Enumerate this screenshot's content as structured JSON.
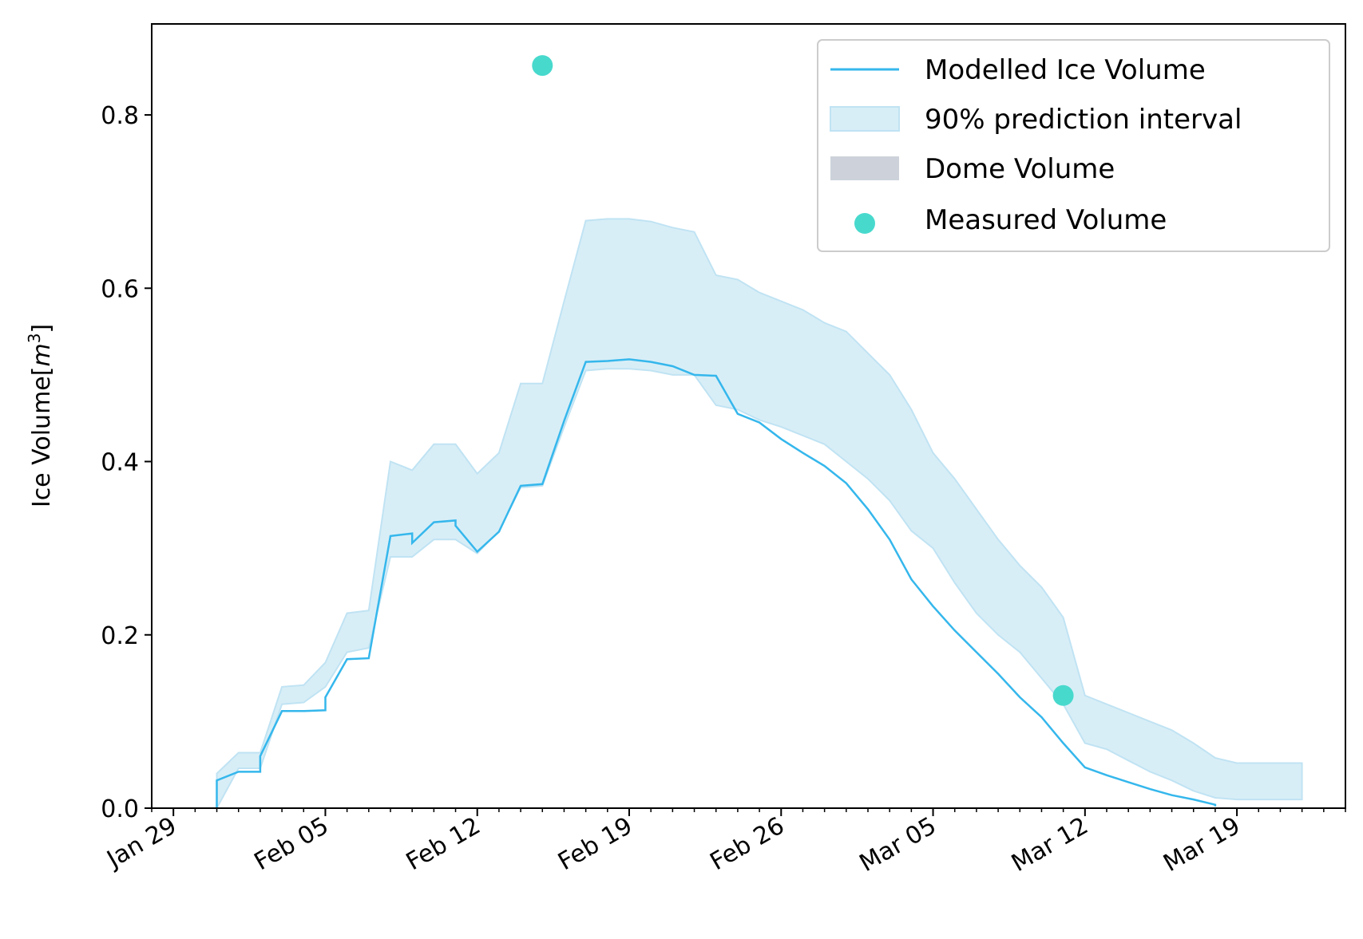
{
  "chart_data": {
    "type": "line",
    "title": "",
    "xlabel": "",
    "ylabel": "Ice Volume[m³]",
    "ylabel_parts": {
      "pre": "Ice Volume[",
      "var": "m",
      "sup": "3",
      "post": "]"
    },
    "x_axis_type": "date",
    "xlim": [
      "2019-01-28",
      "2019-03-24"
    ],
    "ylim": [
      0.0,
      0.905
    ],
    "x_ticks": [
      "Jan 29",
      "Feb 05",
      "Feb 12",
      "Feb 19",
      "Feb 26",
      "Mar 05",
      "Mar 12",
      "Mar 19"
    ],
    "x_tick_dates": [
      "2019-01-29",
      "2019-02-05",
      "2019-02-12",
      "2019-02-19",
      "2019-02-26",
      "2019-03-05",
      "2019-03-12",
      "2019-03-19"
    ],
    "y_ticks": [
      "0.0",
      "0.2",
      "0.4",
      "0.6",
      "0.8"
    ],
    "y_tick_values": [
      0.0,
      0.2,
      0.4,
      0.6,
      0.8
    ],
    "grid": false,
    "legend_position": "top-right",
    "legend": [
      {
        "label": "Modelled Ice Volume",
        "kind": "line",
        "color": "#35b7ec"
      },
      {
        "label": "90% prediction interval",
        "kind": "band",
        "color": "#d8eef7"
      },
      {
        "label": "Dome Volume",
        "kind": "band",
        "color": "#cdd2da"
      },
      {
        "label": "Measured Volume",
        "kind": "point",
        "color": "#48d9cd"
      }
    ],
    "series": [
      {
        "name": "Modelled Ice Volume",
        "kind": "line",
        "color": "#35b7ec",
        "points": [
          [
            "2019-01-31",
            0.0
          ],
          [
            "2019-01-31",
            0.032
          ],
          [
            "2019-02-01",
            0.042
          ],
          [
            "2019-02-02",
            0.042
          ],
          [
            "2019-02-02",
            0.06
          ],
          [
            "2019-02-03",
            0.112
          ],
          [
            "2019-02-04",
            0.112
          ],
          [
            "2019-02-05",
            0.113
          ],
          [
            "2019-02-05",
            0.128
          ],
          [
            "2019-02-06",
            0.172
          ],
          [
            "2019-02-07",
            0.173
          ],
          [
            "2019-02-08",
            0.314
          ],
          [
            "2019-02-09",
            0.317
          ],
          [
            "2019-02-09",
            0.306
          ],
          [
            "2019-02-10",
            0.33
          ],
          [
            "2019-02-11",
            0.332
          ],
          [
            "2019-02-11",
            0.326
          ],
          [
            "2019-02-12",
            0.296
          ],
          [
            "2019-02-13",
            0.319
          ],
          [
            "2019-02-14",
            0.372
          ],
          [
            "2019-02-15",
            0.374
          ],
          [
            "2019-02-16",
            0.447
          ],
          [
            "2019-02-17",
            0.515
          ],
          [
            "2019-02-18",
            0.516
          ],
          [
            "2019-02-19",
            0.518
          ],
          [
            "2019-02-20",
            0.515
          ],
          [
            "2019-02-21",
            0.51
          ],
          [
            "2019-02-22",
            0.5
          ],
          [
            "2019-02-23",
            0.499
          ],
          [
            "2019-02-24",
            0.455
          ],
          [
            "2019-02-25",
            0.445
          ],
          [
            "2019-02-26",
            0.426
          ],
          [
            "2019-02-27",
            0.41
          ],
          [
            "2019-02-28",
            0.395
          ],
          [
            "2019-03-01",
            0.375
          ],
          [
            "2019-03-02",
            0.345
          ],
          [
            "2019-03-03",
            0.31
          ],
          [
            "2019-03-04",
            0.264
          ],
          [
            "2019-03-05",
            0.233
          ],
          [
            "2019-03-06",
            0.205
          ],
          [
            "2019-03-07",
            0.18
          ],
          [
            "2019-03-08",
            0.155
          ],
          [
            "2019-03-09",
            0.128
          ],
          [
            "2019-03-10",
            0.105
          ],
          [
            "2019-03-11",
            0.075
          ],
          [
            "2019-03-12",
            0.047
          ],
          [
            "2019-03-13",
            0.038
          ],
          [
            "2019-03-14",
            0.03
          ],
          [
            "2019-03-15",
            0.022
          ],
          [
            "2019-03-16",
            0.015
          ],
          [
            "2019-03-17",
            0.01
          ],
          [
            "2019-03-18",
            0.004
          ],
          [
            "2019-03-18",
            0.002
          ]
        ]
      },
      {
        "name": "90% prediction interval",
        "kind": "band",
        "color": "#d8eef7",
        "edge_color": "#c0e3f3",
        "points": [
          [
            "2019-01-31",
            0.0,
            0.04
          ],
          [
            "2019-02-01",
            0.046,
            0.064
          ],
          [
            "2019-02-02",
            0.046,
            0.064
          ],
          [
            "2019-02-03",
            0.12,
            0.14
          ],
          [
            "2019-02-04",
            0.122,
            0.142
          ],
          [
            "2019-02-05",
            0.14,
            0.168
          ],
          [
            "2019-02-06",
            0.18,
            0.225
          ],
          [
            "2019-02-07",
            0.185,
            0.228
          ],
          [
            "2019-02-08",
            0.29,
            0.4
          ],
          [
            "2019-02-09",
            0.29,
            0.39
          ],
          [
            "2019-02-10",
            0.31,
            0.42
          ],
          [
            "2019-02-11",
            0.31,
            0.42
          ],
          [
            "2019-02-12",
            0.294,
            0.386
          ],
          [
            "2019-02-13",
            0.32,
            0.41
          ],
          [
            "2019-02-14",
            0.37,
            0.49
          ],
          [
            "2019-02-15",
            0.372,
            0.49
          ],
          [
            "2019-02-16",
            0.44,
            0.585
          ],
          [
            "2019-02-17",
            0.505,
            0.678
          ],
          [
            "2019-02-18",
            0.507,
            0.68
          ],
          [
            "2019-02-19",
            0.507,
            0.68
          ],
          [
            "2019-02-20",
            0.505,
            0.677
          ],
          [
            "2019-02-21",
            0.5,
            0.67
          ],
          [
            "2019-02-22",
            0.5,
            0.665
          ],
          [
            "2019-02-23",
            0.465,
            0.615
          ],
          [
            "2019-02-24",
            0.46,
            0.61
          ],
          [
            "2019-02-25",
            0.448,
            0.595
          ],
          [
            "2019-02-26",
            0.44,
            0.585
          ],
          [
            "2019-02-27",
            0.43,
            0.575
          ],
          [
            "2019-02-28",
            0.42,
            0.56
          ],
          [
            "2019-03-01",
            0.4,
            0.55
          ],
          [
            "2019-03-02",
            0.38,
            0.525
          ],
          [
            "2019-03-03",
            0.355,
            0.5
          ],
          [
            "2019-03-04",
            0.32,
            0.46
          ],
          [
            "2019-03-05",
            0.3,
            0.41
          ],
          [
            "2019-03-06",
            0.26,
            0.38
          ],
          [
            "2019-03-07",
            0.225,
            0.345
          ],
          [
            "2019-03-08",
            0.2,
            0.31
          ],
          [
            "2019-03-09",
            0.18,
            0.28
          ],
          [
            "2019-03-10",
            0.15,
            0.255
          ],
          [
            "2019-03-11",
            0.12,
            0.22
          ],
          [
            "2019-03-12",
            0.075,
            0.13
          ],
          [
            "2019-03-13",
            0.068,
            0.12
          ],
          [
            "2019-03-14",
            0.055,
            0.11
          ],
          [
            "2019-03-15",
            0.042,
            0.1
          ],
          [
            "2019-03-16",
            0.032,
            0.09
          ],
          [
            "2019-03-17",
            0.02,
            0.075
          ],
          [
            "2019-03-18",
            0.012,
            0.058
          ],
          [
            "2019-03-19",
            0.01,
            0.052
          ],
          [
            "2019-03-20",
            0.01,
            0.052
          ],
          [
            "2019-03-22",
            0.01,
            0.052
          ]
        ]
      },
      {
        "name": "Measured Volume",
        "kind": "scatter",
        "color": "#48d9cd",
        "points": [
          [
            "2019-02-15",
            0.857
          ],
          [
            "2019-03-11",
            0.13
          ]
        ]
      }
    ]
  }
}
